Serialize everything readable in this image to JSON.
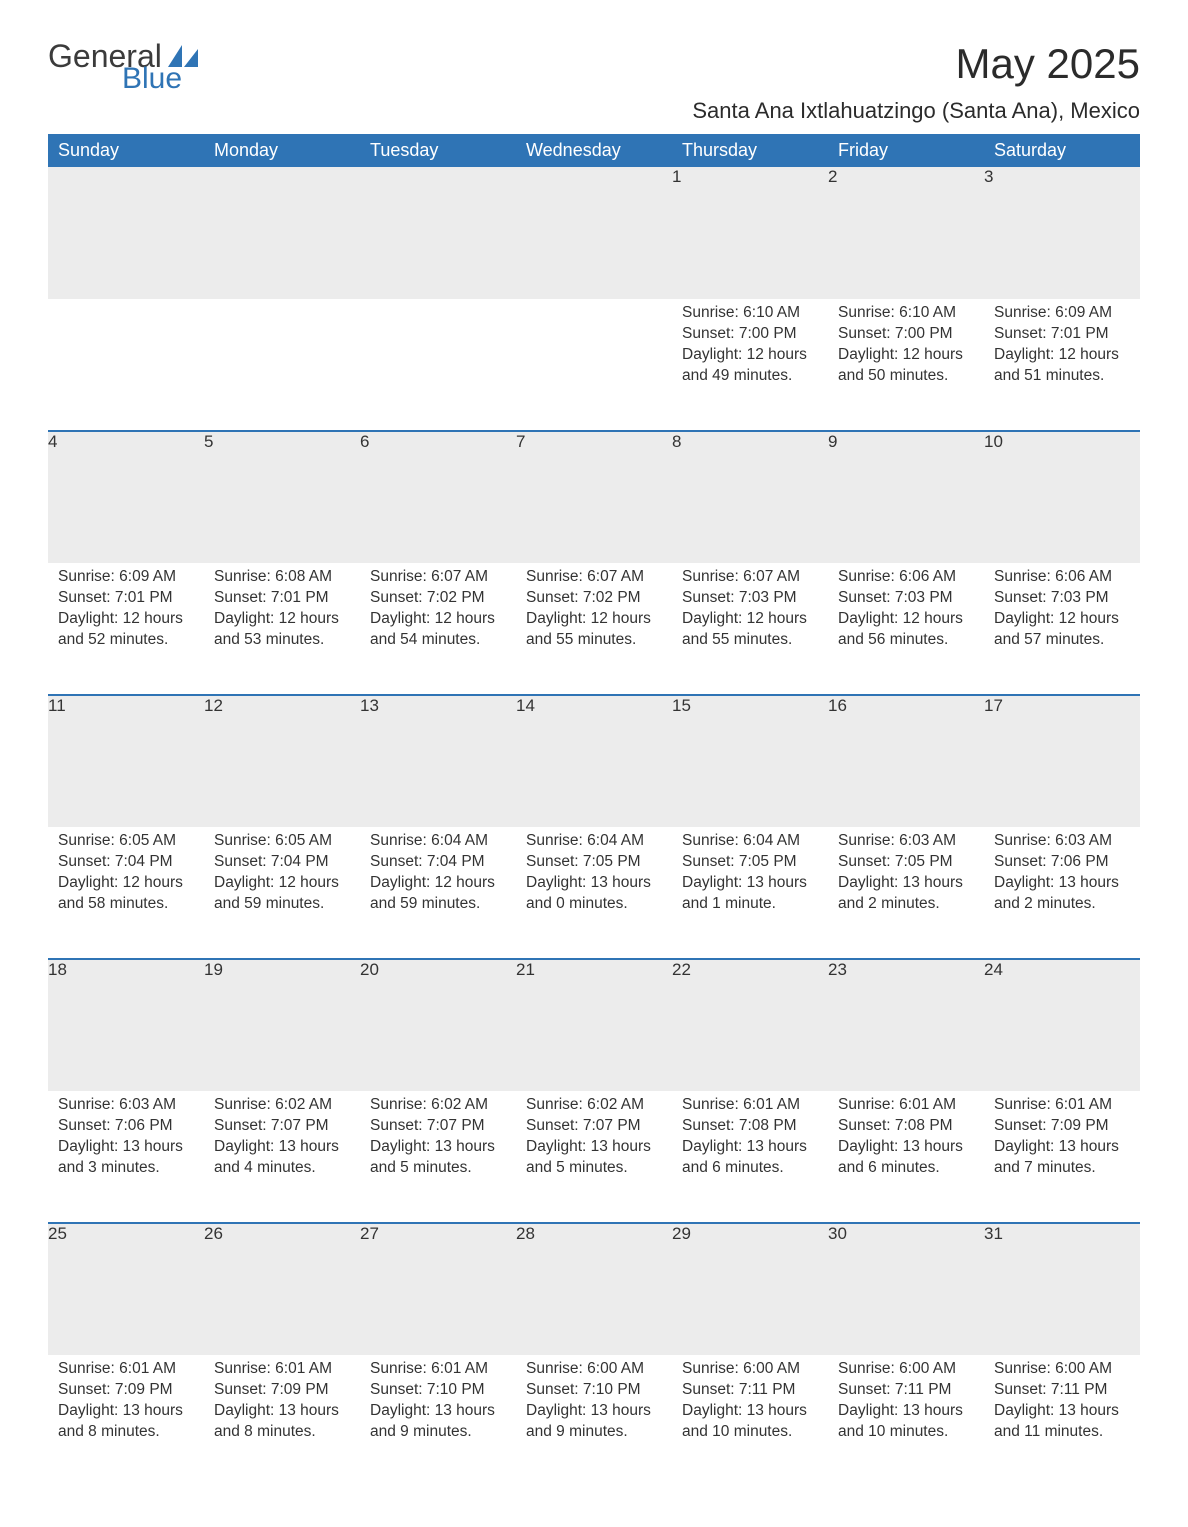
{
  "brand": {
    "word1": "General",
    "word2": "Blue"
  },
  "title": "May 2025",
  "subtitle": "Santa Ana Ixtlahuatzingo (Santa Ana), Mexico",
  "colors": {
    "header_bg": "#2f74b5",
    "header_fg": "#ffffff",
    "row_divider": "#2f74b5",
    "daynum_bg": "#ececec",
    "text": "#333333",
    "background": "#ffffff"
  },
  "weekdays": [
    "Sunday",
    "Monday",
    "Tuesday",
    "Wednesday",
    "Thursday",
    "Friday",
    "Saturday"
  ],
  "weeks": [
    [
      null,
      null,
      null,
      null,
      {
        "n": "1",
        "sunrise": "6:10 AM",
        "sunset": "7:00 PM",
        "daylight": "12 hours and 49 minutes."
      },
      {
        "n": "2",
        "sunrise": "6:10 AM",
        "sunset": "7:00 PM",
        "daylight": "12 hours and 50 minutes."
      },
      {
        "n": "3",
        "sunrise": "6:09 AM",
        "sunset": "7:01 PM",
        "daylight": "12 hours and 51 minutes."
      }
    ],
    [
      {
        "n": "4",
        "sunrise": "6:09 AM",
        "sunset": "7:01 PM",
        "daylight": "12 hours and 52 minutes."
      },
      {
        "n": "5",
        "sunrise": "6:08 AM",
        "sunset": "7:01 PM",
        "daylight": "12 hours and 53 minutes."
      },
      {
        "n": "6",
        "sunrise": "6:07 AM",
        "sunset": "7:02 PM",
        "daylight": "12 hours and 54 minutes."
      },
      {
        "n": "7",
        "sunrise": "6:07 AM",
        "sunset": "7:02 PM",
        "daylight": "12 hours and 55 minutes."
      },
      {
        "n": "8",
        "sunrise": "6:07 AM",
        "sunset": "7:03 PM",
        "daylight": "12 hours and 55 minutes."
      },
      {
        "n": "9",
        "sunrise": "6:06 AM",
        "sunset": "7:03 PM",
        "daylight": "12 hours and 56 minutes."
      },
      {
        "n": "10",
        "sunrise": "6:06 AM",
        "sunset": "7:03 PM",
        "daylight": "12 hours and 57 minutes."
      }
    ],
    [
      {
        "n": "11",
        "sunrise": "6:05 AM",
        "sunset": "7:04 PM",
        "daylight": "12 hours and 58 minutes."
      },
      {
        "n": "12",
        "sunrise": "6:05 AM",
        "sunset": "7:04 PM",
        "daylight": "12 hours and 59 minutes."
      },
      {
        "n": "13",
        "sunrise": "6:04 AM",
        "sunset": "7:04 PM",
        "daylight": "12 hours and 59 minutes."
      },
      {
        "n": "14",
        "sunrise": "6:04 AM",
        "sunset": "7:05 PM",
        "daylight": "13 hours and 0 minutes."
      },
      {
        "n": "15",
        "sunrise": "6:04 AM",
        "sunset": "7:05 PM",
        "daylight": "13 hours and 1 minute."
      },
      {
        "n": "16",
        "sunrise": "6:03 AM",
        "sunset": "7:05 PM",
        "daylight": "13 hours and 2 minutes."
      },
      {
        "n": "17",
        "sunrise": "6:03 AM",
        "sunset": "7:06 PM",
        "daylight": "13 hours and 2 minutes."
      }
    ],
    [
      {
        "n": "18",
        "sunrise": "6:03 AM",
        "sunset": "7:06 PM",
        "daylight": "13 hours and 3 minutes."
      },
      {
        "n": "19",
        "sunrise": "6:02 AM",
        "sunset": "7:07 PM",
        "daylight": "13 hours and 4 minutes."
      },
      {
        "n": "20",
        "sunrise": "6:02 AM",
        "sunset": "7:07 PM",
        "daylight": "13 hours and 5 minutes."
      },
      {
        "n": "21",
        "sunrise": "6:02 AM",
        "sunset": "7:07 PM",
        "daylight": "13 hours and 5 minutes."
      },
      {
        "n": "22",
        "sunrise": "6:01 AM",
        "sunset": "7:08 PM",
        "daylight": "13 hours and 6 minutes."
      },
      {
        "n": "23",
        "sunrise": "6:01 AM",
        "sunset": "7:08 PM",
        "daylight": "13 hours and 6 minutes."
      },
      {
        "n": "24",
        "sunrise": "6:01 AM",
        "sunset": "7:09 PM",
        "daylight": "13 hours and 7 minutes."
      }
    ],
    [
      {
        "n": "25",
        "sunrise": "6:01 AM",
        "sunset": "7:09 PM",
        "daylight": "13 hours and 8 minutes."
      },
      {
        "n": "26",
        "sunrise": "6:01 AM",
        "sunset": "7:09 PM",
        "daylight": "13 hours and 8 minutes."
      },
      {
        "n": "27",
        "sunrise": "6:01 AM",
        "sunset": "7:10 PM",
        "daylight": "13 hours and 9 minutes."
      },
      {
        "n": "28",
        "sunrise": "6:00 AM",
        "sunset": "7:10 PM",
        "daylight": "13 hours and 9 minutes."
      },
      {
        "n": "29",
        "sunrise": "6:00 AM",
        "sunset": "7:11 PM",
        "daylight": "13 hours and 10 minutes."
      },
      {
        "n": "30",
        "sunrise": "6:00 AM",
        "sunset": "7:11 PM",
        "daylight": "13 hours and 10 minutes."
      },
      {
        "n": "31",
        "sunrise": "6:00 AM",
        "sunset": "7:11 PM",
        "daylight": "13 hours and 11 minutes."
      }
    ]
  ],
  "labels": {
    "sunrise": "Sunrise: ",
    "sunset": "Sunset: ",
    "daylight": "Daylight: "
  }
}
